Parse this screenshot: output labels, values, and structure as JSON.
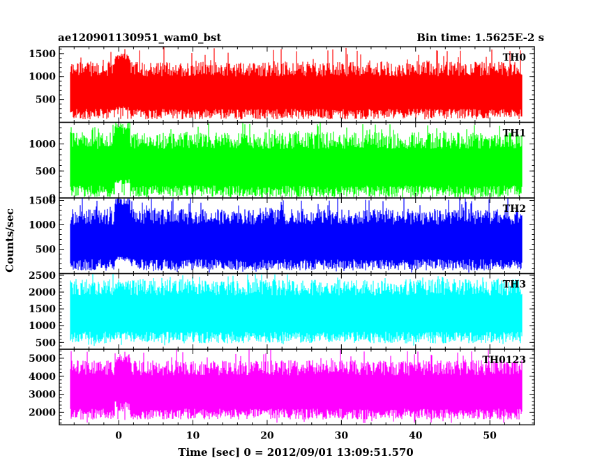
{
  "header": {
    "title": "ae120901130951_wam0_bst",
    "bin_time": "Bin time: 1.5625E-2 s"
  },
  "chart_data": {
    "type": "line",
    "xlabel": "Time [sec] 0 = 2012/09/01 13:09:51.570",
    "ylabel": "Counts/sec",
    "xlim": [
      -8,
      56
    ],
    "x_ticks": [
      0,
      10,
      20,
      30,
      40,
      50
    ],
    "x_tick_labels": [
      "0",
      "10",
      "20",
      "30",
      "40",
      "50"
    ],
    "panels": [
      {
        "name": "TH0",
        "color": "#ff0000",
        "ylim": [
          0,
          1650
        ],
        "y_ticks": [
          500,
          1000,
          1500
        ],
        "y_tick_labels": [
          "500",
          "1000",
          "1500"
        ],
        "data_x_range": [
          -8,
          56
        ],
        "typical_low": 180,
        "typical_high": 1100,
        "min": 60,
        "max": 1650,
        "features": [
          {
            "x": 0.5,
            "low": 300,
            "high": 1500
          }
        ]
      },
      {
        "name": "TH1",
        "color": "#00ff00",
        "ylim": [
          0,
          1400
        ],
        "y_ticks": [
          0,
          500,
          1000
        ],
        "y_tick_labels": [
          "0",
          "500",
          "1000"
        ],
        "data_x_range": [
          -8,
          56
        ],
        "typical_low": 120,
        "typical_high": 1000,
        "min": 20,
        "max": 1400,
        "features": [
          {
            "x": 0.5,
            "low": 300,
            "high": 1400
          }
        ]
      },
      {
        "name": "TH2",
        "color": "#0000ff",
        "ylim": [
          0,
          1550
        ],
        "y_ticks": [
          500,
          1000,
          1500
        ],
        "y_tick_labels": [
          "500",
          "1000",
          "1500"
        ],
        "data_x_range": [
          -8,
          56
        ],
        "typical_low": 180,
        "typical_high": 1100,
        "min": 20,
        "max": 1550,
        "features": [
          {
            "x": 0.5,
            "low": 300,
            "high": 1550
          }
        ]
      },
      {
        "name": "TH3",
        "color": "#00ffff",
        "ylim": [
          300,
          2550
        ],
        "y_ticks": [
          500,
          1000,
          1500,
          2000,
          2500
        ],
        "y_tick_labels": [
          "500",
          "1000",
          "1500",
          "2000",
          "2500"
        ],
        "data_x_range": [
          -8,
          56
        ],
        "typical_low": 650,
        "typical_high": 2050,
        "min": 400,
        "max": 2550,
        "features": [
          {
            "x": 0.5,
            "low": 700,
            "high": 2300
          }
        ]
      },
      {
        "name": "TH0123",
        "color": "#ff00ff",
        "ylim": [
          1300,
          5500
        ],
        "y_ticks": [
          2000,
          3000,
          4000,
          5000
        ],
        "y_tick_labels": [
          "2000",
          "3000",
          "4000",
          "5000"
        ],
        "data_x_range": [
          -8,
          56
        ],
        "typical_low": 1900,
        "typical_high": 4300,
        "min": 1400,
        "max": 5500,
        "features": [
          {
            "x": 0.5,
            "low": 2400,
            "high": 5300
          }
        ]
      }
    ]
  }
}
